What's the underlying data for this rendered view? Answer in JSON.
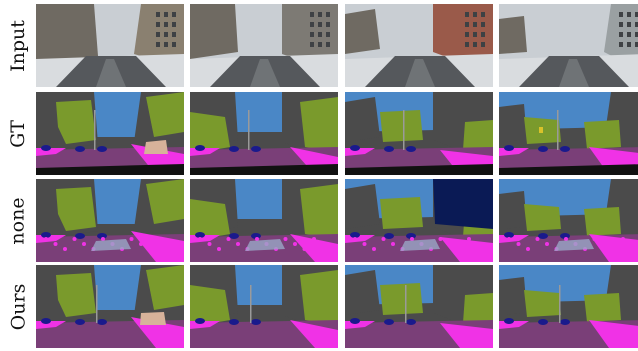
{
  "figure": {
    "rows": [
      {
        "label": "Input",
        "kind": "photo"
      },
      {
        "label": "GT",
        "kind": "gt"
      },
      {
        "label": "none",
        "kind": "noisy"
      },
      {
        "label": "Ours",
        "kind": "ours"
      }
    ],
    "columns": 4
  },
  "colors": {
    "sky": "#4a87c6",
    "building": "#4b4b4b",
    "vegetation": "#7a9a2c",
    "road": "#7a3f78",
    "sidewalk": "#f032e6",
    "car": "#1a1a8c",
    "terrain": "#9aa7c5",
    "wall": "#d7b29a",
    "sign": "#d9c22a",
    "pole": "#9a9a9a"
  }
}
